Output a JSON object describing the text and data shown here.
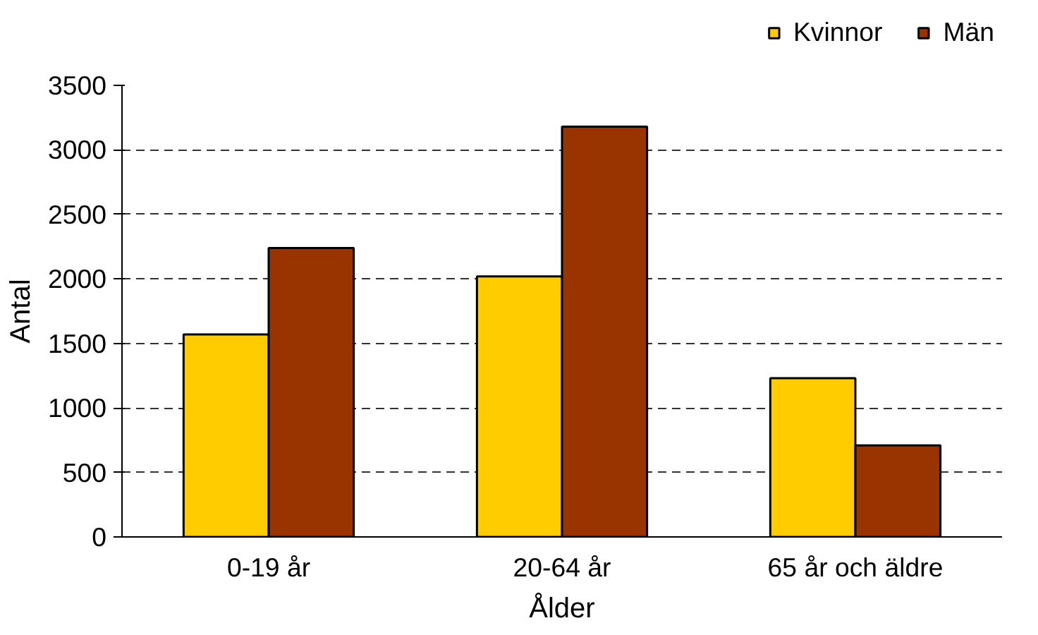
{
  "chart_data": {
    "type": "bar",
    "xlabel": "Ålder",
    "ylabel": "Antal",
    "categories": [
      "0-19 år",
      "20-64 år",
      "65 år och äldre"
    ],
    "series": [
      {
        "name": "Kvinnor",
        "color": "#ffcc00",
        "values": [
          1570,
          2020,
          1230
        ]
      },
      {
        "name": "Män",
        "color": "#993300",
        "values": [
          2240,
          3180,
          710
        ]
      }
    ],
    "ylim": [
      0,
      3500
    ],
    "yticks": [
      0,
      500,
      1000,
      1500,
      2000,
      2500,
      3000,
      3500
    ],
    "grid": "y",
    "legend": "top right"
  }
}
